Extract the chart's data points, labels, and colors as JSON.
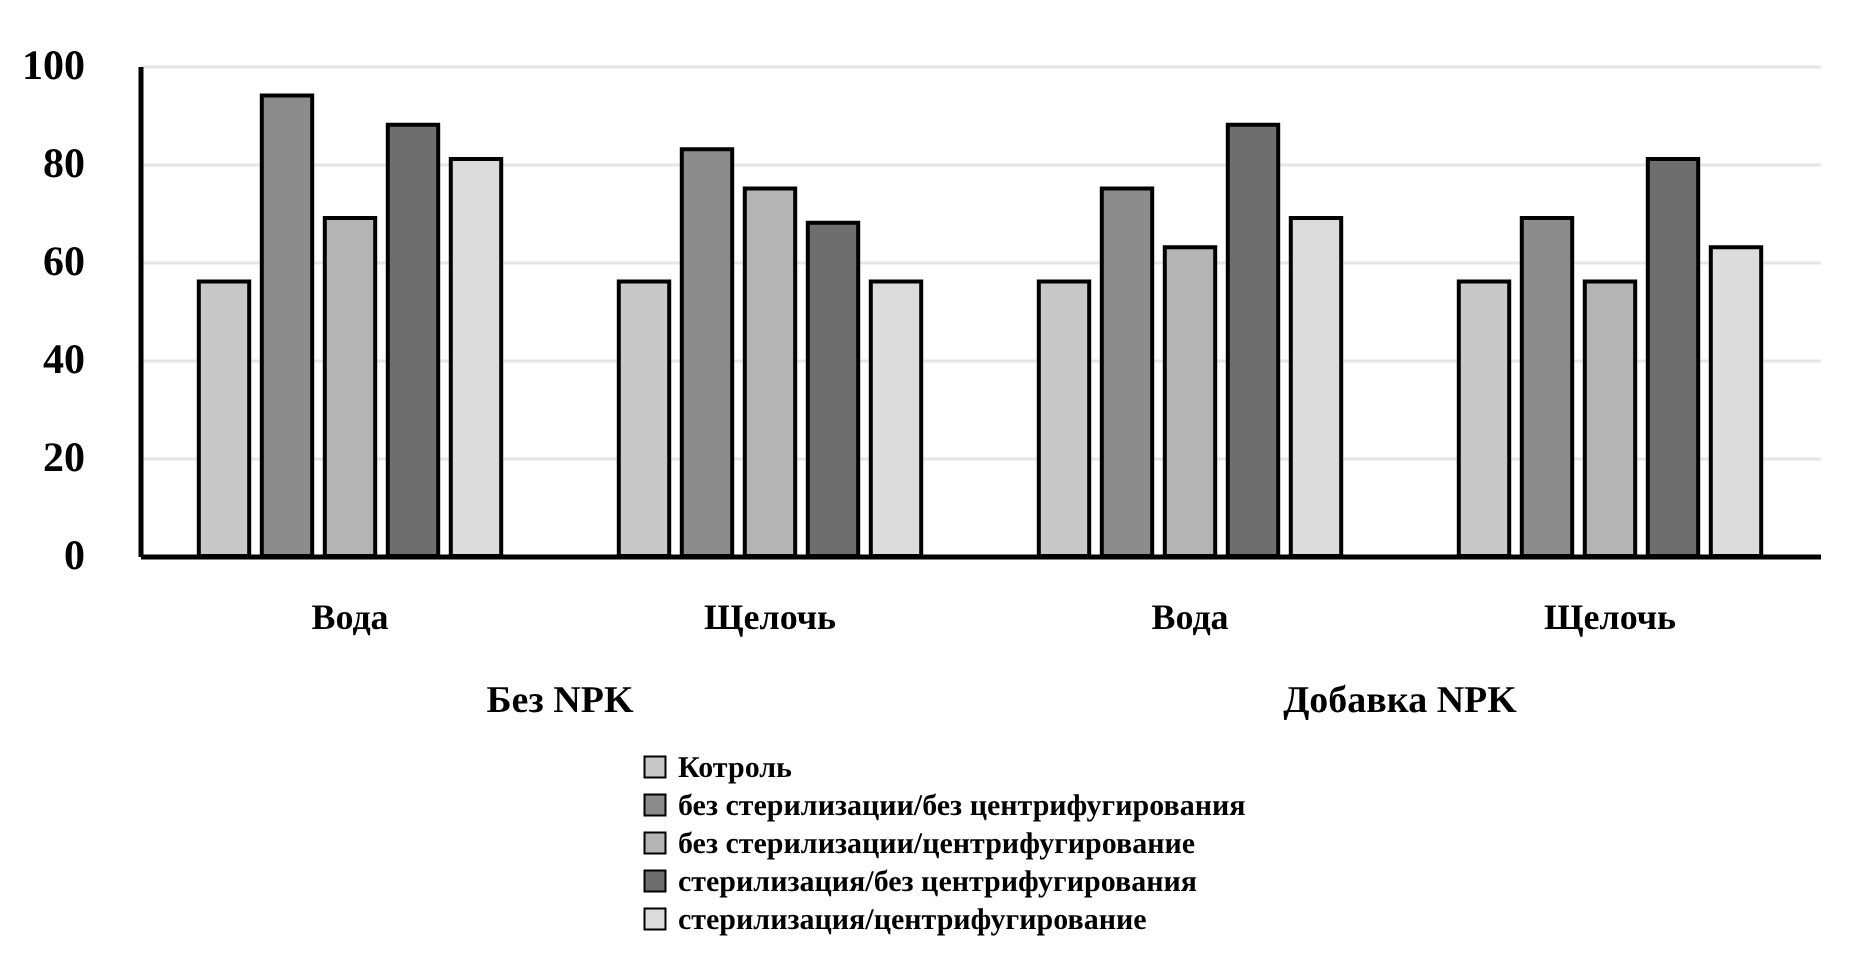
{
  "chart_data": {
    "type": "bar",
    "categories": [
      "Вода",
      "Щелочь",
      "Вода",
      "Щелочь"
    ],
    "series": [
      {
        "name": "Котроль",
        "color": "#c8c8c8",
        "values": [
          56,
          56,
          56,
          56
        ]
      },
      {
        "name": "без стерилизации/без центрифугирования",
        "color": "#8c8c8c",
        "values": [
          94,
          83,
          75,
          69
        ]
      },
      {
        "name": "без стерилизации/центрифугирование",
        "color": "#b4b4b4",
        "values": [
          69,
          75,
          63,
          56
        ]
      },
      {
        "name": "стерилизация/без центрифугирования",
        "color": "#6e6e6e",
        "values": [
          88,
          68,
          88,
          81
        ]
      },
      {
        "name": "стерилизация/центрифугирование",
        "color": "#dcdcdc",
        "values": [
          81,
          56,
          69,
          63
        ]
      }
    ],
    "annotations": [
      "Без NPK",
      "Добавка NPK"
    ],
    "ylim": [
      0,
      100
    ],
    "yticks": [
      0,
      20,
      40,
      60,
      80,
      100
    ],
    "grid": true,
    "legend": "bottom"
  }
}
